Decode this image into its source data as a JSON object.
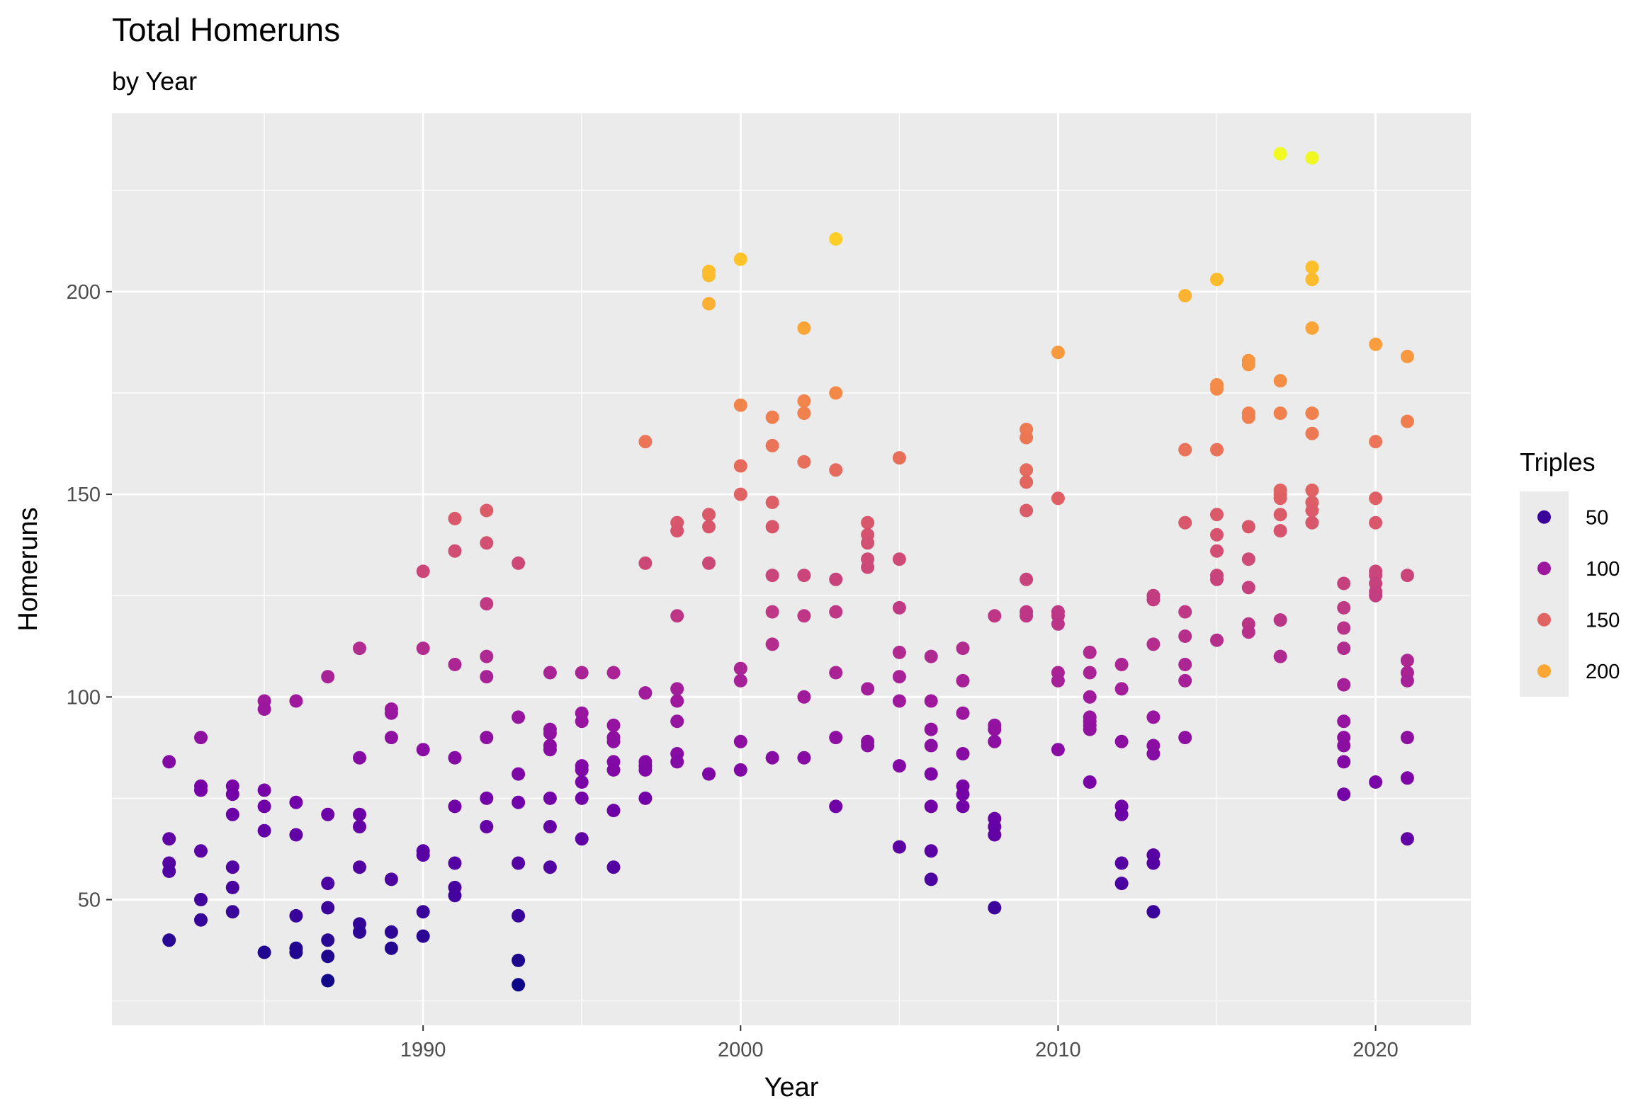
{
  "chart_data": {
    "type": "scatter",
    "title": "Total Homeruns",
    "subtitle": "by Year",
    "xlabel": "Year",
    "ylabel": "Homeruns",
    "xlim": [
      1980.2,
      2023.0
    ],
    "ylim": [
      19.0,
      244.0
    ],
    "x_ticks": [
      1990,
      2000,
      2010,
      2020
    ],
    "y_ticks": [
      50,
      100,
      150,
      200
    ],
    "grid": true,
    "legend": {
      "title": "Triples",
      "position": "right",
      "entries": [
        {
          "label": "50",
          "color": "#3a049a"
        },
        {
          "label": "100",
          "color": "#9c179e"
        },
        {
          "label": "150",
          "color": "#e16462"
        },
        {
          "label": "200",
          "color": "#fca636"
        }
      ]
    },
    "color_scale": {
      "name": "plasma",
      "domain": [
        29,
        234
      ],
      "stops": [
        "#0d0887",
        "#46039f",
        "#7201a8",
        "#9c179e",
        "#bd3786",
        "#d8576b",
        "#ed7953",
        "#fb9f3a",
        "#fdca26",
        "#f0f921"
      ]
    },
    "points": [
      [
        1982,
        84
      ],
      [
        1982,
        65
      ],
      [
        1982,
        59
      ],
      [
        1982,
        57
      ],
      [
        1982,
        40
      ],
      [
        1983,
        90
      ],
      [
        1983,
        78
      ],
      [
        1983,
        77
      ],
      [
        1983,
        62
      ],
      [
        1983,
        50
      ],
      [
        1983,
        45
      ],
      [
        1984,
        78
      ],
      [
        1984,
        76
      ],
      [
        1984,
        71
      ],
      [
        1984,
        58
      ],
      [
        1984,
        53
      ],
      [
        1984,
        47
      ],
      [
        1985,
        99
      ],
      [
        1985,
        97
      ],
      [
        1985,
        77
      ],
      [
        1985,
        73
      ],
      [
        1985,
        67
      ],
      [
        1985,
        37
      ],
      [
        1986,
        99
      ],
      [
        1986,
        74
      ],
      [
        1986,
        66
      ],
      [
        1986,
        46
      ],
      [
        1986,
        38
      ],
      [
        1986,
        37
      ],
      [
        1987,
        105
      ],
      [
        1987,
        71
      ],
      [
        1987,
        54
      ],
      [
        1987,
        48
      ],
      [
        1987,
        40
      ],
      [
        1987,
        36
      ],
      [
        1987,
        30
      ],
      [
        1988,
        112
      ],
      [
        1988,
        85
      ],
      [
        1988,
        71
      ],
      [
        1988,
        68
      ],
      [
        1988,
        58
      ],
      [
        1988,
        44
      ],
      [
        1988,
        42
      ],
      [
        1989,
        97
      ],
      [
        1989,
        96
      ],
      [
        1989,
        90
      ],
      [
        1989,
        55
      ],
      [
        1989,
        42
      ],
      [
        1989,
        38
      ],
      [
        1990,
        131
      ],
      [
        1990,
        112
      ],
      [
        1990,
        87
      ],
      [
        1990,
        62
      ],
      [
        1990,
        61
      ],
      [
        1990,
        47
      ],
      [
        1990,
        41
      ],
      [
        1991,
        144
      ],
      [
        1991,
        136
      ],
      [
        1991,
        108
      ],
      [
        1991,
        85
      ],
      [
        1991,
        73
      ],
      [
        1991,
        59
      ],
      [
        1991,
        53
      ],
      [
        1991,
        51
      ],
      [
        1992,
        146
      ],
      [
        1992,
        138
      ],
      [
        1992,
        123
      ],
      [
        1992,
        110
      ],
      [
        1992,
        105
      ],
      [
        1992,
        90
      ],
      [
        1992,
        75
      ],
      [
        1992,
        68
      ],
      [
        1993,
        133
      ],
      [
        1993,
        95
      ],
      [
        1993,
        81
      ],
      [
        1993,
        74
      ],
      [
        1993,
        59
      ],
      [
        1993,
        46
      ],
      [
        1993,
        35
      ],
      [
        1993,
        29
      ],
      [
        1994,
        106
      ],
      [
        1994,
        92
      ],
      [
        1994,
        91
      ],
      [
        1994,
        88
      ],
      [
        1994,
        87
      ],
      [
        1994,
        75
      ],
      [
        1994,
        68
      ],
      [
        1994,
        58
      ],
      [
        1995,
        106
      ],
      [
        1995,
        96
      ],
      [
        1995,
        94
      ],
      [
        1995,
        83
      ],
      [
        1995,
        82
      ],
      [
        1995,
        79
      ],
      [
        1995,
        75
      ],
      [
        1995,
        65
      ],
      [
        1996,
        106
      ],
      [
        1996,
        93
      ],
      [
        1996,
        90
      ],
      [
        1996,
        89
      ],
      [
        1996,
        84
      ],
      [
        1996,
        82
      ],
      [
        1996,
        72
      ],
      [
        1996,
        58
      ],
      [
        1997,
        163
      ],
      [
        1997,
        133
      ],
      [
        1997,
        101
      ],
      [
        1997,
        84
      ],
      [
        1997,
        83
      ],
      [
        1997,
        82
      ],
      [
        1997,
        75
      ],
      [
        1998,
        143
      ],
      [
        1998,
        141
      ],
      [
        1998,
        120
      ],
      [
        1998,
        102
      ],
      [
        1998,
        99
      ],
      [
        1998,
        94
      ],
      [
        1998,
        86
      ],
      [
        1998,
        84
      ],
      [
        1999,
        205
      ],
      [
        1999,
        204
      ],
      [
        1999,
        197
      ],
      [
        1999,
        145
      ],
      [
        1999,
        142
      ],
      [
        1999,
        133
      ],
      [
        1999,
        81
      ],
      [
        2000,
        208
      ],
      [
        2000,
        172
      ],
      [
        2000,
        157
      ],
      [
        2000,
        150
      ],
      [
        2000,
        107
      ],
      [
        2000,
        104
      ],
      [
        2000,
        89
      ],
      [
        2000,
        82
      ],
      [
        2001,
        169
      ],
      [
        2001,
        162
      ],
      [
        2001,
        148
      ],
      [
        2001,
        142
      ],
      [
        2001,
        130
      ],
      [
        2001,
        121
      ],
      [
        2001,
        113
      ],
      [
        2001,
        85
      ],
      [
        2002,
        191
      ],
      [
        2002,
        173
      ],
      [
        2002,
        170
      ],
      [
        2002,
        158
      ],
      [
        2002,
        130
      ],
      [
        2002,
        120
      ],
      [
        2002,
        100
      ],
      [
        2002,
        85
      ],
      [
        2003,
        213
      ],
      [
        2003,
        175
      ],
      [
        2003,
        156
      ],
      [
        2003,
        129
      ],
      [
        2003,
        121
      ],
      [
        2003,
        106
      ],
      [
        2003,
        90
      ],
      [
        2003,
        73
      ],
      [
        2004,
        143
      ],
      [
        2004,
        140
      ],
      [
        2004,
        138
      ],
      [
        2004,
        134
      ],
      [
        2004,
        132
      ],
      [
        2004,
        102
      ],
      [
        2004,
        89
      ],
      [
        2004,
        88
      ],
      [
        2005,
        159
      ],
      [
        2005,
        134
      ],
      [
        2005,
        122
      ],
      [
        2005,
        111
      ],
      [
        2005,
        105
      ],
      [
        2005,
        99
      ],
      [
        2005,
        83
      ],
      [
        2005,
        63
      ],
      [
        2006,
        110
      ],
      [
        2006,
        99
      ],
      [
        2006,
        92
      ],
      [
        2006,
        88
      ],
      [
        2006,
        81
      ],
      [
        2006,
        73
      ],
      [
        2006,
        62
      ],
      [
        2006,
        55
      ],
      [
        2007,
        112
      ],
      [
        2007,
        104
      ],
      [
        2007,
        96
      ],
      [
        2007,
        86
      ],
      [
        2007,
        78
      ],
      [
        2007,
        76
      ],
      [
        2007,
        73
      ],
      [
        2008,
        120
      ],
      [
        2008,
        93
      ],
      [
        2008,
        92
      ],
      [
        2008,
        89
      ],
      [
        2008,
        70
      ],
      [
        2008,
        68
      ],
      [
        2008,
        66
      ],
      [
        2008,
        48
      ],
      [
        2009,
        166
      ],
      [
        2009,
        164
      ],
      [
        2009,
        156
      ],
      [
        2009,
        153
      ],
      [
        2009,
        146
      ],
      [
        2009,
        129
      ],
      [
        2009,
        121
      ],
      [
        2009,
        120
      ],
      [
        2010,
        185
      ],
      [
        2010,
        149
      ],
      [
        2010,
        121
      ],
      [
        2010,
        120
      ],
      [
        2010,
        118
      ],
      [
        2010,
        106
      ],
      [
        2010,
        104
      ],
      [
        2010,
        87
      ],
      [
        2011,
        111
      ],
      [
        2011,
        106
      ],
      [
        2011,
        100
      ],
      [
        2011,
        95
      ],
      [
        2011,
        94
      ],
      [
        2011,
        93
      ],
      [
        2011,
        92
      ],
      [
        2011,
        79
      ],
      [
        2012,
        108
      ],
      [
        2012,
        102
      ],
      [
        2012,
        89
      ],
      [
        2012,
        73
      ],
      [
        2012,
        71
      ],
      [
        2012,
        59
      ],
      [
        2012,
        54
      ],
      [
        2013,
        125
      ],
      [
        2013,
        124
      ],
      [
        2013,
        113
      ],
      [
        2013,
        95
      ],
      [
        2013,
        88
      ],
      [
        2013,
        86
      ],
      [
        2013,
        61
      ],
      [
        2013,
        59
      ],
      [
        2013,
        47
      ],
      [
        2014,
        199
      ],
      [
        2014,
        161
      ],
      [
        2014,
        143
      ],
      [
        2014,
        121
      ],
      [
        2014,
        115
      ],
      [
        2014,
        108
      ],
      [
        2014,
        104
      ],
      [
        2014,
        90
      ],
      [
        2015,
        203
      ],
      [
        2015,
        177
      ],
      [
        2015,
        176
      ],
      [
        2015,
        161
      ],
      [
        2015,
        145
      ],
      [
        2015,
        140
      ],
      [
        2015,
        136
      ],
      [
        2015,
        130
      ],
      [
        2015,
        129
      ],
      [
        2015,
        114
      ],
      [
        2016,
        183
      ],
      [
        2016,
        182
      ],
      [
        2016,
        170
      ],
      [
        2016,
        169
      ],
      [
        2016,
        142
      ],
      [
        2016,
        134
      ],
      [
        2016,
        127
      ],
      [
        2016,
        118
      ],
      [
        2016,
        116
      ],
      [
        2017,
        234
      ],
      [
        2017,
        178
      ],
      [
        2017,
        170
      ],
      [
        2017,
        151
      ],
      [
        2017,
        150
      ],
      [
        2017,
        149
      ],
      [
        2017,
        145
      ],
      [
        2017,
        141
      ],
      [
        2017,
        119
      ],
      [
        2017,
        110
      ],
      [
        2018,
        233
      ],
      [
        2018,
        206
      ],
      [
        2018,
        203
      ],
      [
        2018,
        191
      ],
      [
        2018,
        170
      ],
      [
        2018,
        165
      ],
      [
        2018,
        151
      ],
      [
        2018,
        148
      ],
      [
        2018,
        146
      ],
      [
        2018,
        143
      ],
      [
        2019,
        128
      ],
      [
        2019,
        122
      ],
      [
        2019,
        117
      ],
      [
        2019,
        112
      ],
      [
        2019,
        103
      ],
      [
        2019,
        94
      ],
      [
        2019,
        90
      ],
      [
        2019,
        88
      ],
      [
        2019,
        84
      ],
      [
        2019,
        76
      ],
      [
        2020,
        187
      ],
      [
        2020,
        163
      ],
      [
        2020,
        149
      ],
      [
        2020,
        143
      ],
      [
        2020,
        131
      ],
      [
        2020,
        130
      ],
      [
        2020,
        128
      ],
      [
        2020,
        126
      ],
      [
        2020,
        125
      ],
      [
        2020,
        79
      ],
      [
        2021,
        184
      ],
      [
        2021,
        168
      ],
      [
        2021,
        130
      ],
      [
        2021,
        109
      ],
      [
        2021,
        106
      ],
      [
        2021,
        104
      ],
      [
        2021,
        90
      ],
      [
        2021,
        80
      ],
      [
        2021,
        65
      ]
    ]
  }
}
